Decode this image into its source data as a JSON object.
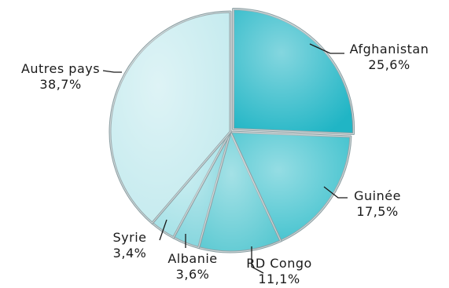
{
  "chart_data": {
    "type": "pie",
    "title": "",
    "start_angle_deg": 0,
    "direction": "clockwise",
    "style": "3d-beveled",
    "slices": [
      {
        "label": "Afghanistan",
        "value": 25.6,
        "value_text": "25,6%",
        "color": "#20b5c5"
      },
      {
        "label": "Guinée",
        "value": 17.5,
        "value_text": "17,5%",
        "color": "#3ec1cd"
      },
      {
        "label": "RD Congo",
        "value": 11.1,
        "value_text": "11,1%",
        "color": "#5bc9d2"
      },
      {
        "label": "Albanie",
        "value": 3.6,
        "value_text": "3,6%",
        "color": "#7fd4dc"
      },
      {
        "label": "Syrie",
        "value": 3.4,
        "value_text": "3,4%",
        "color": "#a2e0e6"
      },
      {
        "label": "Autres pays",
        "value": 38.7,
        "value_text": "38,7%",
        "color": "#c3eaee"
      }
    ]
  }
}
